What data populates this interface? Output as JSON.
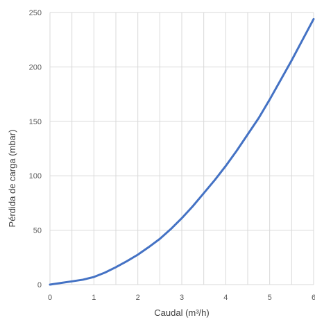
{
  "chart_data": {
    "type": "line",
    "title": "",
    "xlabel": "Caudal (m³/h)",
    "ylabel": "Pérdida de carga (mbar)",
    "xlim": [
      0,
      6
    ],
    "ylim": [
      0,
      250
    ],
    "x_ticks": [
      "0",
      "1",
      "2",
      "3",
      "4",
      "5",
      "6"
    ],
    "y_ticks": [
      "0",
      "50",
      "100",
      "150",
      "200",
      "250"
    ],
    "x_minor_step": 0.5,
    "grid": true,
    "legend": "none",
    "series": [
      {
        "color": "#4472C4",
        "x": [
          0,
          0.25,
          0.5,
          0.75,
          1,
          1.25,
          1.5,
          1.75,
          2,
          2.25,
          2.5,
          2.75,
          3,
          3.25,
          3.5,
          3.75,
          4,
          4.25,
          4.5,
          4.75,
          5,
          5.25,
          5.5,
          5.75,
          6
        ],
        "y": [
          0,
          1.5,
          3,
          4.5,
          7,
          11,
          16,
          21.5,
          27.5,
          34.5,
          42,
          51,
          61,
          72,
          84,
          96,
          109,
          123,
          138,
          153,
          170,
          188,
          206,
          225,
          244
        ]
      }
    ]
  },
  "colors": {
    "grid": "#d9d9d9",
    "axis_text": "#595959"
  }
}
